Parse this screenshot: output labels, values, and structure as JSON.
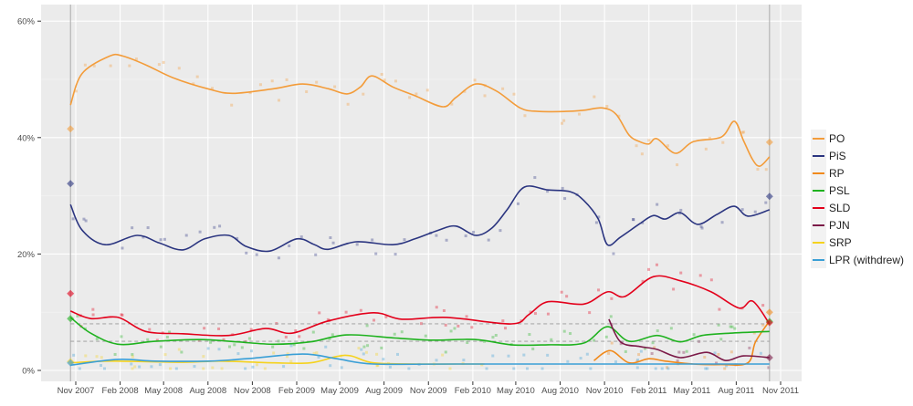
{
  "chart_data": {
    "type": "line",
    "title": "",
    "xlabel": "",
    "ylabel": "",
    "ylim": [
      0,
      64
    ],
    "xlim": [
      "2007-09-01",
      "2011-12-01"
    ],
    "y_ticks": [
      "0%",
      "20%",
      "40%",
      "60%"
    ],
    "y_tick_values": [
      0,
      20,
      40,
      60
    ],
    "x_ticks": [
      "Nov 2007",
      "Feb 2008",
      "May 2008",
      "Aug 2008",
      "Nov 2008",
      "Feb 2009",
      "May 2009",
      "Aug 2009",
      "Nov 2009",
      "Feb 2010",
      "May 2010",
      "Aug 2010",
      "Nov 2010",
      "Feb 2011",
      "May 2011",
      "Aug 2011",
      "Nov 2011"
    ],
    "x_tick_dates": [
      "2007-11-01",
      "2008-02-01",
      "2008-05-01",
      "2008-08-01",
      "2008-11-01",
      "2009-02-01",
      "2009-05-01",
      "2009-08-01",
      "2009-11-01",
      "2010-02-01",
      "2010-05-01",
      "2010-08-01",
      "2010-11-01",
      "2011-02-01",
      "2011-05-01",
      "2011-08-01",
      "2011-11-01"
    ],
    "grid": true,
    "legend_position": "right",
    "election_dates": [
      "2007-10-21",
      "2011-10-09"
    ],
    "threshold_lines": [
      8,
      5
    ],
    "series": [
      {
        "name": "PO",
        "color": "#f39c3a",
        "points": [
          [
            "2007-10-21",
            45.6
          ],
          [
            "2007-11-14",
            51
          ],
          [
            "2008-01-10",
            54
          ],
          [
            "2008-02-07",
            54
          ],
          [
            "2008-03-25",
            52.5
          ],
          [
            "2008-05-20",
            50.3
          ],
          [
            "2008-08-04",
            48.3
          ],
          [
            "2008-09-22",
            47.6
          ],
          [
            "2008-12-16",
            48.4
          ],
          [
            "2009-02-13",
            49.2
          ],
          [
            "2009-04-07",
            48.4
          ],
          [
            "2009-05-16",
            47.5
          ],
          [
            "2009-06-13",
            48.7
          ],
          [
            "2009-07-07",
            50.6
          ],
          [
            "2009-08-19",
            48.7
          ],
          [
            "2009-10-04",
            47.2
          ],
          [
            "2009-12-01",
            45.3
          ],
          [
            "2009-12-28",
            46.9
          ],
          [
            "2010-02-07",
            49.2
          ],
          [
            "2010-03-22",
            48
          ],
          [
            "2010-05-10",
            45.1
          ],
          [
            "2010-06-16",
            44.5
          ],
          [
            "2010-08-13",
            44.5
          ],
          [
            "2010-09-19",
            44.7
          ],
          [
            "2010-10-28",
            45.1
          ],
          [
            "2010-11-25",
            44
          ],
          [
            "2010-12-22",
            40.4
          ],
          [
            "2011-01-13",
            39.3
          ],
          [
            "2011-02-01",
            38.9
          ],
          [
            "2011-02-18",
            39.8
          ],
          [
            "2011-03-28",
            37.3
          ],
          [
            "2011-05-04",
            39.3
          ],
          [
            "2011-07-01",
            40.1
          ],
          [
            "2011-07-28",
            42.8
          ],
          [
            "2011-08-16",
            39.5
          ],
          [
            "2011-09-04",
            36.2
          ],
          [
            "2011-09-19",
            35.1
          ],
          [
            "2011-10-09",
            36.7
          ]
        ],
        "result_start": 41.5,
        "result_end": 39.2
      },
      {
        "name": "PiS",
        "color": "#2b3580",
        "points": [
          [
            "2007-10-21",
            28.5
          ],
          [
            "2007-11-14",
            24.1
          ],
          [
            "2008-01-01",
            21.6
          ],
          [
            "2008-03-07",
            23.2
          ],
          [
            "2008-04-22",
            21.9
          ],
          [
            "2008-06-10",
            20.7
          ],
          [
            "2008-07-25",
            22.6
          ],
          [
            "2008-09-13",
            23.2
          ],
          [
            "2008-10-19",
            21.3
          ],
          [
            "2008-12-07",
            20.5
          ],
          [
            "2009-02-01",
            22.6
          ],
          [
            "2009-03-10",
            21.6
          ],
          [
            "2009-04-07",
            20.8
          ],
          [
            "2009-06-04",
            22.1
          ],
          [
            "2009-08-19",
            21.6
          ],
          [
            "2009-10-04",
            22.6
          ],
          [
            "2009-11-22",
            24.1
          ],
          [
            "2009-12-28",
            24.8
          ],
          [
            "2010-02-07",
            23.2
          ],
          [
            "2010-03-13",
            24.5
          ],
          [
            "2010-04-13",
            27.6
          ],
          [
            "2010-05-19",
            31.5
          ],
          [
            "2010-07-07",
            31
          ],
          [
            "2010-08-22",
            30.7
          ],
          [
            "2010-09-19",
            29.2
          ],
          [
            "2010-10-19",
            26
          ],
          [
            "2010-11-07",
            21.6
          ],
          [
            "2010-12-04",
            22.9
          ],
          [
            "2011-01-13",
            25.2
          ],
          [
            "2011-02-10",
            26.6
          ],
          [
            "2011-03-07",
            26
          ],
          [
            "2011-04-07",
            27.1
          ],
          [
            "2011-05-13",
            25.1
          ],
          [
            "2011-06-22",
            26.8
          ],
          [
            "2011-07-28",
            28.2
          ],
          [
            "2011-08-25",
            26.5
          ],
          [
            "2011-10-09",
            27.6
          ]
        ],
        "result_start": 32.1,
        "result_end": 29.9
      },
      {
        "name": "RP",
        "color": "#f08a1c",
        "points": [
          [
            "2010-10-10",
            1.7
          ],
          [
            "2010-11-13",
            3.4
          ],
          [
            "2010-12-22",
            1.3
          ],
          [
            "2011-02-01",
            2
          ],
          [
            "2011-03-07",
            1.6
          ],
          [
            "2011-05-04",
            1.1
          ],
          [
            "2011-07-01",
            1
          ],
          [
            "2011-08-25",
            1.3
          ],
          [
            "2011-09-10",
            4.9
          ],
          [
            "2011-10-09",
            8.5
          ]
        ],
        "result_end": 10.0
      },
      {
        "name": "PSL",
        "color": "#1fb21f",
        "points": [
          [
            "2007-10-21",
            9.1
          ],
          [
            "2007-12-02",
            6.4
          ],
          [
            "2008-01-28",
            4.5
          ],
          [
            "2008-04-13",
            5
          ],
          [
            "2008-07-16",
            5.3
          ],
          [
            "2008-10-01",
            4.9
          ],
          [
            "2008-12-16",
            4.5
          ],
          [
            "2009-03-01",
            4.9
          ],
          [
            "2009-05-16",
            6.1
          ],
          [
            "2009-08-19",
            5.6
          ],
          [
            "2009-11-04",
            5.2
          ],
          [
            "2010-02-07",
            5.3
          ],
          [
            "2010-04-22",
            4.4
          ],
          [
            "2010-07-07",
            4.4
          ],
          [
            "2010-09-19",
            4.7
          ],
          [
            "2010-11-07",
            7.5
          ],
          [
            "2010-12-22",
            5
          ],
          [
            "2011-02-18",
            6
          ],
          [
            "2011-04-07",
            4.9
          ],
          [
            "2011-05-22",
            6
          ],
          [
            "2011-07-19",
            6.4
          ],
          [
            "2011-10-09",
            6.7
          ]
        ],
        "result_start": 8.9,
        "result_end": 8.4
      },
      {
        "name": "SLD",
        "color": "#e3001b",
        "points": [
          [
            "2007-10-21",
            10.2
          ],
          [
            "2007-12-02",
            8.9
          ],
          [
            "2008-01-28",
            9.1
          ],
          [
            "2008-03-25",
            6.7
          ],
          [
            "2008-06-10",
            6.3
          ],
          [
            "2008-09-13",
            6
          ],
          [
            "2008-11-28",
            7.2
          ],
          [
            "2009-01-22",
            6.4
          ],
          [
            "2009-04-07",
            8.5
          ],
          [
            "2009-07-10",
            9.9
          ],
          [
            "2009-09-07",
            8.8
          ],
          [
            "2009-12-10",
            9.1
          ],
          [
            "2010-04-22",
            8
          ],
          [
            "2010-05-28",
            9.6
          ],
          [
            "2010-07-07",
            11.8
          ],
          [
            "2010-09-19",
            11.4
          ],
          [
            "2010-11-07",
            13.5
          ],
          [
            "2010-12-13",
            12.7
          ],
          [
            "2011-02-10",
            16.1
          ],
          [
            "2011-04-07",
            15.4
          ],
          [
            "2011-06-10",
            13.5
          ],
          [
            "2011-08-07",
            10.7
          ],
          [
            "2011-09-04",
            11.9
          ],
          [
            "2011-10-09",
            8
          ]
        ],
        "result_start": 13.2,
        "result_end": 8.2
      },
      {
        "name": "PJN",
        "color": "#7b1a48",
        "points": [
          [
            "2010-11-10",
            8.8
          ],
          [
            "2010-12-04",
            4.9
          ],
          [
            "2011-01-13",
            4.1
          ],
          [
            "2011-02-18",
            3.6
          ],
          [
            "2011-04-07",
            2.2
          ],
          [
            "2011-06-01",
            3.1
          ],
          [
            "2011-07-10",
            1.7
          ],
          [
            "2011-08-16",
            2.5
          ],
          [
            "2011-10-09",
            2.2
          ]
        ],
        "result_end": 2.2
      },
      {
        "name": "SRP",
        "color": "#f5d21e",
        "points": [
          [
            "2007-10-21",
            1.3
          ],
          [
            "2008-01-10",
            1.6
          ],
          [
            "2008-06-10",
            1.4
          ],
          [
            "2008-08-25",
            1.6
          ],
          [
            "2008-12-16",
            1.3
          ],
          [
            "2009-03-01",
            1.3
          ],
          [
            "2009-04-25",
            2.4
          ],
          [
            "2009-05-25",
            2.5
          ],
          [
            "2009-07-10",
            1.3
          ],
          [
            "2009-10-13",
            1.1
          ],
          [
            "2009-12-28",
            1.1
          ],
          [
            "2010-02-25",
            1.1
          ]
        ],
        "result_start": 1.5
      },
      {
        "name": "LPR (withdrew)",
        "color": "#3a9fd6",
        "points": [
          [
            "2007-10-21",
            0.9
          ],
          [
            "2008-01-28",
            1.9
          ],
          [
            "2008-04-13",
            1.6
          ],
          [
            "2008-08-04",
            1.6
          ],
          [
            "2008-10-19",
            2
          ],
          [
            "2009-02-13",
            2.8
          ],
          [
            "2009-04-25",
            2
          ],
          [
            "2009-07-10",
            1.1
          ],
          [
            "2009-12-28",
            1.1
          ],
          [
            "2011-10-09",
            1.1
          ]
        ],
        "result_start": 1.3
      }
    ]
  }
}
